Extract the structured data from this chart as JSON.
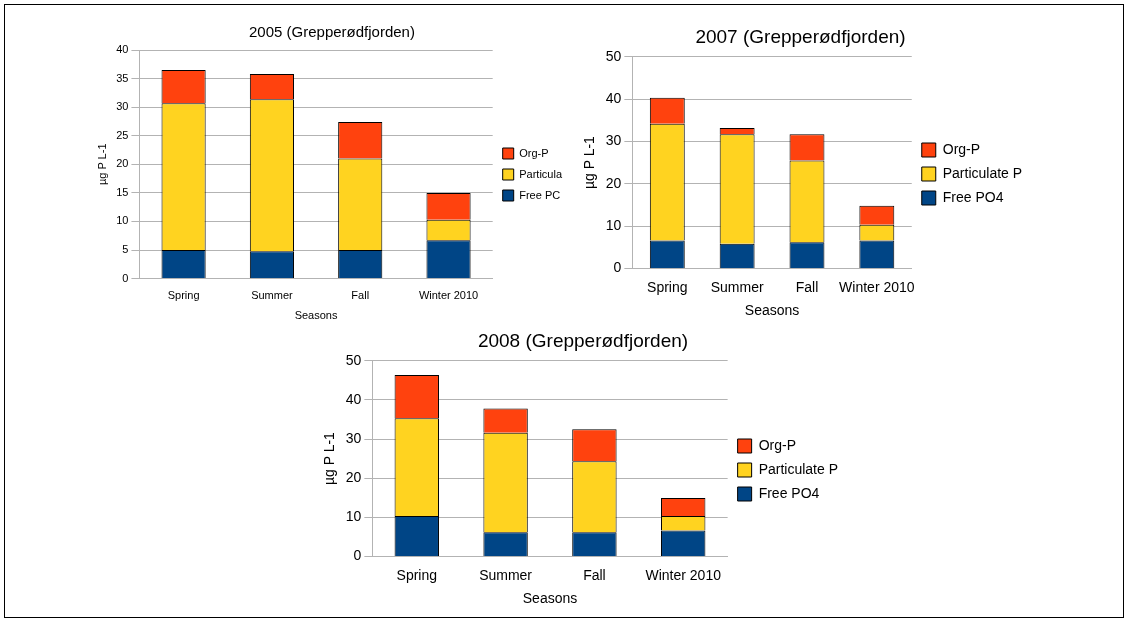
{
  "chart_data": [
    {
      "type": "bar",
      "title": "2005 (Grepperødfjorden)",
      "xlabel": "Seasons",
      "ylabel": "µg P L-1",
      "categories": [
        "Spring",
        "Summer",
        "Fall",
        "Winter 2010"
      ],
      "stacked": true,
      "ylim": [
        0,
        40
      ],
      "yticks": [
        0,
        5,
        10,
        15,
        20,
        25,
        30,
        35,
        40
      ],
      "grid": "y",
      "legend": "right",
      "series": [
        {
          "name": "Free PC",
          "color": "#004586",
          "values": [
            5,
            4.8,
            5,
            6.7
          ]
        },
        {
          "name": "Particula",
          "color": "#ffd320",
          "values": [
            25.7,
            26.6,
            16,
            3.6
          ]
        },
        {
          "name": "Org-P",
          "color": "#ff420e",
          "values": [
            5.8,
            4.4,
            6.4,
            4.7
          ]
        }
      ]
    },
    {
      "type": "bar",
      "title": "2007 (Grepperødfjorden)",
      "xlabel": "Seasons",
      "ylabel": "µg P L-1",
      "categories": [
        "Spring",
        "Summer",
        "Fall",
        "Winter 2010"
      ],
      "stacked": true,
      "ylim": [
        0,
        50
      ],
      "yticks": [
        0,
        10,
        20,
        30,
        40,
        50
      ],
      "grid": "y",
      "legend": "right",
      "series": [
        {
          "name": "Free PO4",
          "color": "#004586",
          "values": [
            6.6,
            5.8,
            6.2,
            6.6
          ]
        },
        {
          "name": "Particulate P",
          "color": "#ffd320",
          "values": [
            27.6,
            25.9,
            19.3,
            3.7
          ]
        },
        {
          "name": "Org-P",
          "color": "#ff420e",
          "values": [
            6.1,
            1.5,
            6.2,
            4.5
          ]
        }
      ]
    },
    {
      "type": "bar",
      "title": "2008 (Grepperødfjorden)",
      "xlabel": "Seasons",
      "ylabel": "µg P L-1",
      "categories": [
        "Spring",
        "Summer",
        "Fall",
        "Winter 2010"
      ],
      "stacked": true,
      "ylim": [
        0,
        50
      ],
      "yticks": [
        0,
        10,
        20,
        30,
        40,
        50
      ],
      "grid": "y",
      "legend": "right",
      "series": [
        {
          "name": "Free PO4",
          "color": "#004586",
          "values": [
            10.3,
            6.2,
            6.2,
            6.6
          ]
        },
        {
          "name": "Particulate P",
          "color": "#ffd320",
          "values": [
            25,
            25.4,
            18.1,
            3.7
          ]
        },
        {
          "name": "Org-P",
          "color": "#ff420e",
          "values": [
            11.1,
            6.2,
            8.2,
            4.6
          ]
        }
      ]
    }
  ]
}
